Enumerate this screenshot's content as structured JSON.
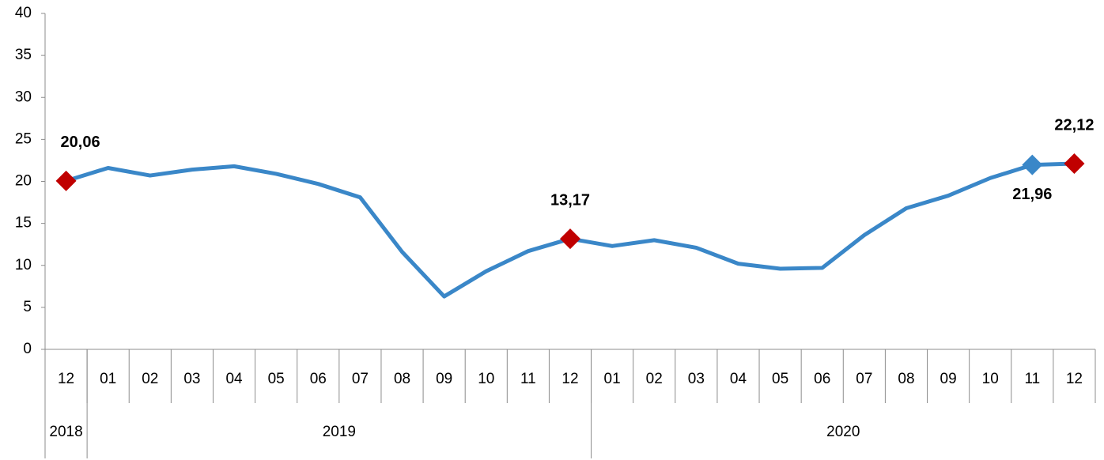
{
  "chart_data": {
    "type": "line",
    "categories": [
      "12",
      "01",
      "02",
      "03",
      "04",
      "05",
      "06",
      "07",
      "08",
      "09",
      "10",
      "11",
      "12",
      "01",
      "02",
      "03",
      "04",
      "05",
      "06",
      "07",
      "08",
      "09",
      "10",
      "11",
      "12"
    ],
    "years": [
      {
        "label": "2018",
        "span": 1
      },
      {
        "label": "2019",
        "span": 12
      },
      {
        "label": "2020",
        "span": 12
      }
    ],
    "series": [
      {
        "color": "#3a87c8",
        "values": [
          20.06,
          21.6,
          20.7,
          21.4,
          21.8,
          20.9,
          19.7,
          18.1,
          11.6,
          6.3,
          9.3,
          11.7,
          13.17,
          12.3,
          13.0,
          12.1,
          10.2,
          9.6,
          9.7,
          13.6,
          16.8,
          18.3,
          20.4,
          21.96,
          22.12
        ],
        "value_labels": [
          "20,06",
          null,
          null,
          null,
          null,
          null,
          null,
          null,
          null,
          null,
          null,
          null,
          "13,17",
          null,
          null,
          null,
          null,
          null,
          null,
          null,
          null,
          null,
          null,
          "21,96",
          "22,12"
        ],
        "marker_colors": [
          "#c00000",
          null,
          null,
          null,
          null,
          null,
          null,
          null,
          null,
          null,
          null,
          null,
          "#c00000",
          null,
          null,
          null,
          null,
          null,
          null,
          null,
          null,
          null,
          null,
          "#3a87c8",
          "#c00000"
        ]
      }
    ],
    "ylim": [
      0,
      40
    ],
    "yticks": [
      0,
      5,
      10,
      15,
      20,
      25,
      30,
      35,
      40
    ],
    "grid": false
  }
}
